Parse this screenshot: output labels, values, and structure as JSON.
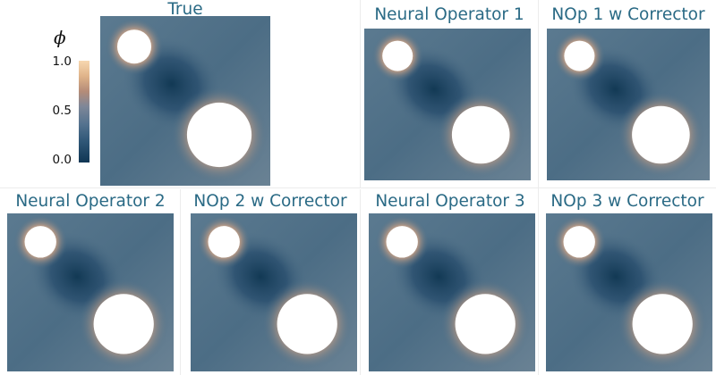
{
  "colorbar": {
    "symbol": "ϕ",
    "ticks": [
      "1.0",
      "0.5",
      "0.0"
    ],
    "range": [
      0.0,
      1.0
    ],
    "colors": [
      "#f7d7b0",
      "#e0b48a",
      "#b58c78",
      "#7e8798",
      "#55738f",
      "#2e5676",
      "#103654"
    ]
  },
  "panels": [
    {
      "title": "True"
    },
    {
      "title": "Neural Operator 1"
    },
    {
      "title": "NOp 1 w Corrector"
    },
    {
      "title": "Neural Operator 2"
    },
    {
      "title": "NOp 2 w Corrector"
    },
    {
      "title": "Neural Operator 3"
    },
    {
      "title": "NOp 3 w Corrector"
    }
  ],
  "colors": {
    "title": "#2a6a85",
    "field_base": "#4c6d85",
    "field_dark": "#123954",
    "field_warm": "#f4caa0",
    "hole": "#ffffff"
  }
}
